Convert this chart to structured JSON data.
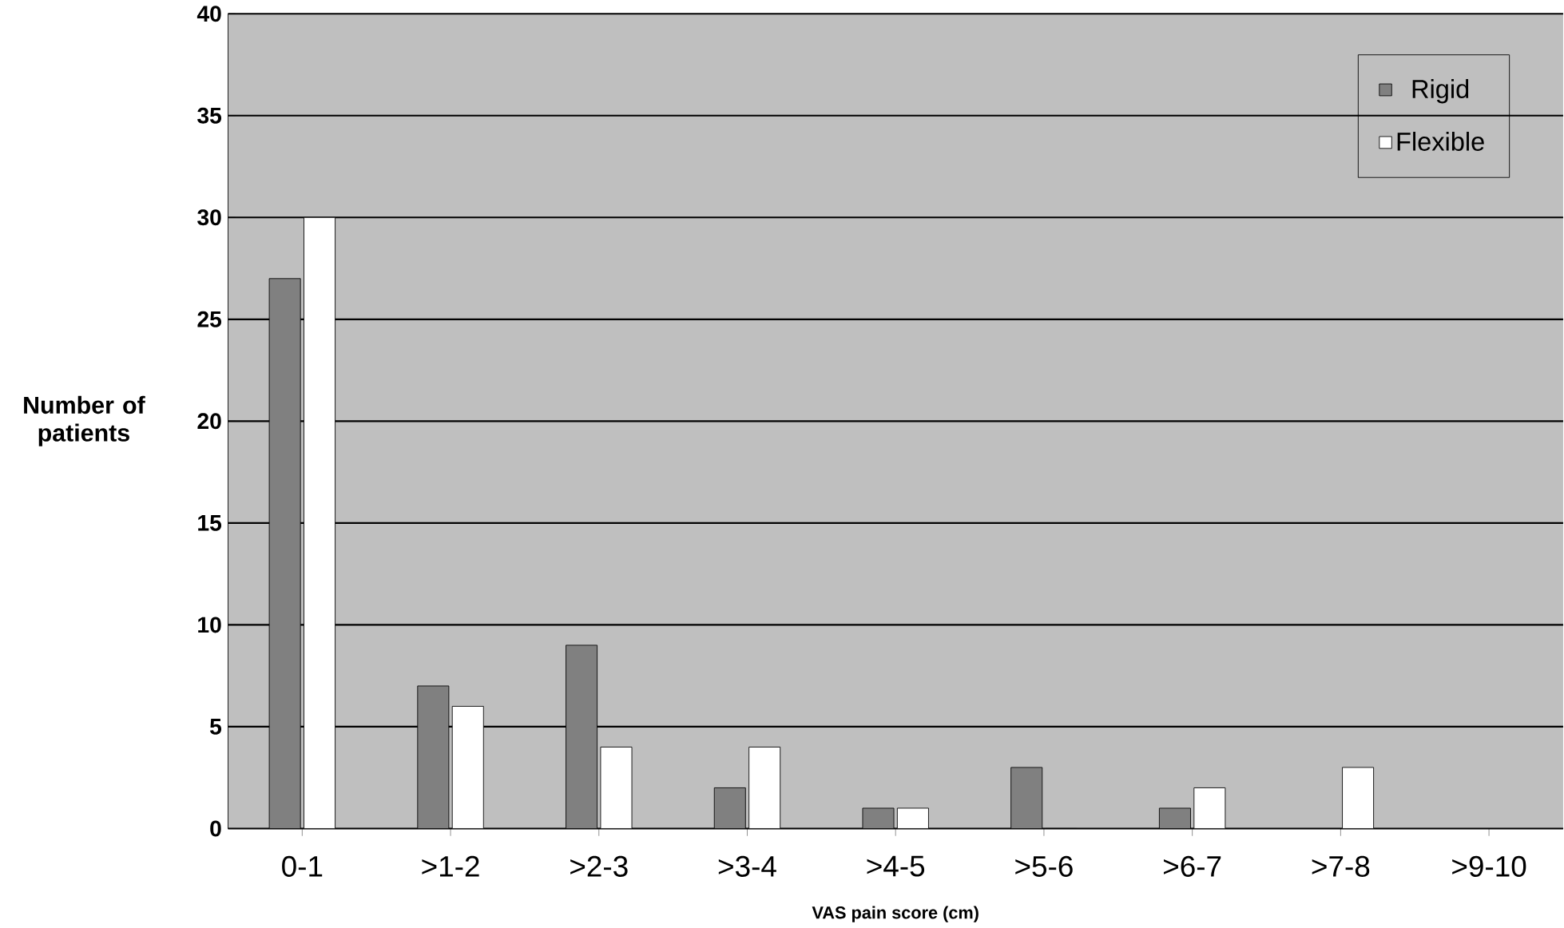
{
  "chart_data": {
    "type": "bar",
    "xlabel": "VAS pain score (cm)",
    "ylabel": "Number of patients",
    "categories": [
      "0-1",
      ">1-2",
      ">2-3",
      ">3-4",
      ">4-5",
      ">5-6",
      ">6-7",
      ">7-8",
      ">9-10"
    ],
    "series": [
      {
        "name": "Rigid",
        "color": "#808080",
        "values": [
          27,
          7,
          9,
          2,
          1,
          3,
          1,
          null,
          null
        ]
      },
      {
        "name": "Flexible",
        "color": "#ffffff",
        "values": [
          30,
          6,
          4,
          4,
          1,
          0,
          2,
          3,
          null
        ]
      }
    ],
    "ylim": [
      0,
      40
    ],
    "yticks": [
      0,
      5,
      10,
      15,
      20,
      25,
      30,
      35,
      40
    ],
    "grid": "y",
    "legend": "top right"
  }
}
